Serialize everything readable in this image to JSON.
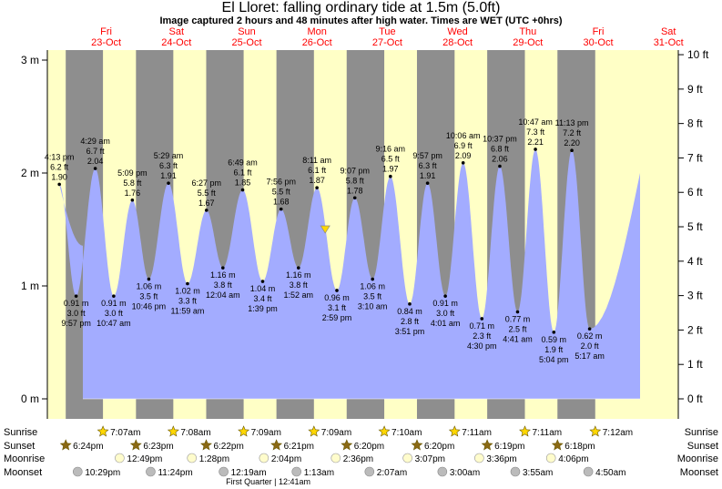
{
  "header": {
    "title": "El Lloret: falling  ordinary tide at 1.5m (5.0ft)",
    "subtitle": "Image captured 2 hours and 48 minutes after high water. Times are WET (UTC +0hrs)"
  },
  "chart_data": {
    "type": "area",
    "title": "El Lloret: falling  ordinary tide at 1.5m (5.0ft)",
    "subtitle": "Image captured 2 hours and 48 minutes after high water. Times are WET (UTC +0hrs)",
    "y_left_unit": "m",
    "y_right_unit": "ft",
    "ylim": [
      0,
      3.1
    ],
    "y_left_ticks": [
      "0 m",
      "1 m",
      "2 m",
      "3 m"
    ],
    "y_right_ticks": [
      "0 ft",
      "1 ft",
      "2 ft",
      "3 ft",
      "4 ft",
      "5 ft",
      "6 ft",
      "7 ft",
      "8 ft",
      "9 ft",
      "10 ft"
    ],
    "days": [
      {
        "dow": "Fri",
        "date": "23-Oct"
      },
      {
        "dow": "Sat",
        "date": "24-Oct"
      },
      {
        "dow": "Sun",
        "date": "25-Oct"
      },
      {
        "dow": "Mon",
        "date": "26-Oct"
      },
      {
        "dow": "Tue",
        "date": "27-Oct"
      },
      {
        "dow": "Wed",
        "date": "28-Oct"
      },
      {
        "dow": "Thu",
        "date": "29-Oct"
      },
      {
        "dow": "Fri",
        "date": "30-Oct"
      },
      {
        "dow": "Sat",
        "date": "31-Oct"
      }
    ],
    "tides": [
      {
        "type": "high",
        "day": 0,
        "time": "4:13 pm",
        "m": 1.9,
        "ft": "6.2 ft",
        "m_label": "1.90"
      },
      {
        "type": "low",
        "day": 0,
        "time": "9:57 pm",
        "m": 0.91,
        "ft": "3.0 ft",
        "m_label": "0.91 m"
      },
      {
        "type": "high",
        "day": 1,
        "time": "4:29 am",
        "m": 2.04,
        "ft": "6.7 ft",
        "m_label": "2.04"
      },
      {
        "type": "low",
        "day": 1,
        "time": "10:47 am",
        "m": 0.91,
        "ft": "3.0 ft",
        "m_label": "0.91 m"
      },
      {
        "type": "high",
        "day": 1,
        "time": "5:09 pm",
        "m": 1.76,
        "ft": "5.8 ft",
        "m_label": "1.76"
      },
      {
        "type": "low",
        "day": 1,
        "time": "10:46 pm",
        "m": 1.06,
        "ft": "3.5 ft",
        "m_label": "1.06 m"
      },
      {
        "type": "high",
        "day": 2,
        "time": "5:29 am",
        "m": 1.91,
        "ft": "6.3 ft",
        "m_label": "1.91"
      },
      {
        "type": "low",
        "day": 2,
        "time": "11:59 am",
        "m": 1.02,
        "ft": "3.3 ft",
        "m_label": "1.02 m"
      },
      {
        "type": "high",
        "day": 2,
        "time": "6:27 pm",
        "m": 1.67,
        "ft": "5.5 ft",
        "m_label": "1.67"
      },
      {
        "type": "low",
        "day": 3,
        "time": "12:04 am",
        "m": 1.16,
        "ft": "3.8 ft",
        "m_label": "1.16 m"
      },
      {
        "type": "high",
        "day": 3,
        "time": "6:49 am",
        "m": 1.85,
        "ft": "6.1 ft",
        "m_label": "1.85"
      },
      {
        "type": "low",
        "day": 3,
        "time": "1:39 pm",
        "m": 1.04,
        "ft": "3.4 ft",
        "m_label": "1.04 m"
      },
      {
        "type": "high",
        "day": 3,
        "time": "7:56 pm",
        "m": 1.68,
        "ft": "5.5 ft",
        "m_label": "1.68"
      },
      {
        "type": "low",
        "day": 4,
        "time": "1:52 am",
        "m": 1.16,
        "ft": "3.8 ft",
        "m_label": "1.16 m"
      },
      {
        "type": "high",
        "day": 4,
        "time": "8:11 am",
        "m": 1.87,
        "ft": "6.1 ft",
        "m_label": "1.87"
      },
      {
        "type": "low",
        "day": 4,
        "time": "2:59 pm",
        "m": 0.96,
        "ft": "3.1 ft",
        "m_label": "0.96 m"
      },
      {
        "type": "high",
        "day": 4,
        "time": "9:07 pm",
        "m": 1.78,
        "ft": "5.8 ft",
        "m_label": "1.78"
      },
      {
        "type": "low",
        "day": 5,
        "time": "3:10 am",
        "m": 1.06,
        "ft": "3.5 ft",
        "m_label": "1.06 m"
      },
      {
        "type": "high",
        "day": 5,
        "time": "9:16 am",
        "m": 1.97,
        "ft": "6.5 ft",
        "m_label": "1.97"
      },
      {
        "type": "low",
        "day": 5,
        "time": "3:51 pm",
        "m": 0.84,
        "ft": "2.8 ft",
        "m_label": "0.84 m"
      },
      {
        "type": "high",
        "day": 5,
        "time": "9:57 pm",
        "m": 1.91,
        "ft": "6.3 ft",
        "m_label": "1.91"
      },
      {
        "type": "low",
        "day": 6,
        "time": "4:01 am",
        "m": 0.91,
        "ft": "3.0 ft",
        "m_label": "0.91 m"
      },
      {
        "type": "high",
        "day": 6,
        "time": "10:06 am",
        "m": 2.09,
        "ft": "6.9 ft",
        "m_label": "2.09"
      },
      {
        "type": "low",
        "day": 6,
        "time": "4:30 pm",
        "m": 0.71,
        "ft": "2.3 ft",
        "m_label": "0.71 m"
      },
      {
        "type": "high",
        "day": 6,
        "time": "10:37 pm",
        "m": 2.06,
        "ft": "6.8 ft",
        "m_label": "2.06"
      },
      {
        "type": "low",
        "day": 7,
        "time": "4:41 am",
        "m": 0.77,
        "ft": "2.5 ft",
        "m_label": "0.77 m"
      },
      {
        "type": "high",
        "day": 7,
        "time": "10:47 am",
        "m": 2.21,
        "ft": "7.3 ft",
        "m_label": "2.21"
      },
      {
        "type": "low",
        "day": 7,
        "time": "5:04 pm",
        "m": 0.59,
        "ft": "1.9 ft",
        "m_label": "0.59 m"
      },
      {
        "type": "high",
        "day": 7,
        "time": "11:13 pm",
        "m": 2.2,
        "ft": "7.2 ft",
        "m_label": "2.20"
      },
      {
        "type": "low",
        "day": 8,
        "time": "5:17 am",
        "m": 0.62,
        "ft": "2.0 ft",
        "m_label": "0.62 m"
      }
    ],
    "current_marker": {
      "day": 4,
      "time": "11:00 am",
      "m": 1.5
    },
    "sun": {
      "sunrise": [
        {
          "day": 1,
          "time": "7:07am"
        },
        {
          "day": 2,
          "time": "7:08am"
        },
        {
          "day": 3,
          "time": "7:09am"
        },
        {
          "day": 4,
          "time": "7:09am"
        },
        {
          "day": 5,
          "time": "7:10am"
        },
        {
          "day": 6,
          "time": "7:11am"
        },
        {
          "day": 7,
          "time": "7:11am"
        },
        {
          "day": 8,
          "time": "7:12am"
        }
      ],
      "sunset": [
        {
          "day": 0,
          "time": "6:24pm"
        },
        {
          "day": 1,
          "time": "6:23pm"
        },
        {
          "day": 2,
          "time": "6:22pm"
        },
        {
          "day": 3,
          "time": "6:21pm"
        },
        {
          "day": 4,
          "time": "6:20pm"
        },
        {
          "day": 5,
          "time": "6:20pm"
        },
        {
          "day": 6,
          "time": "6:19pm"
        },
        {
          "day": 7,
          "time": "6:18pm"
        }
      ]
    },
    "moon": {
      "moonrise": [
        {
          "day": 1,
          "time": "12:49pm"
        },
        {
          "day": 2,
          "time": "1:28pm"
        },
        {
          "day": 3,
          "time": "2:04pm"
        },
        {
          "day": 4,
          "time": "2:36pm"
        },
        {
          "day": 5,
          "time": "3:07pm"
        },
        {
          "day": 6,
          "time": "3:36pm"
        },
        {
          "day": 7,
          "time": "4:06pm"
        }
      ],
      "moonset": [
        {
          "day": 0,
          "time": "10:29pm"
        },
        {
          "day": 1,
          "time": "11:24pm"
        },
        {
          "day": 3,
          "time": "12:19am"
        },
        {
          "day": 4,
          "time": "1:13am"
        },
        {
          "day": 5,
          "time": "2:07am"
        },
        {
          "day": 6,
          "time": "3:00am"
        },
        {
          "day": 7,
          "time": "3:55am"
        },
        {
          "day": 8,
          "time": "4:50am"
        }
      ]
    },
    "row_labels": {
      "sunrise": "Sunrise",
      "sunset": "Sunset",
      "moonrise": "Moonrise",
      "moonset": "Moonset"
    },
    "moon_phase": {
      "day": 3,
      "text": "First Quarter | 12:41am"
    },
    "colors": {
      "water": "#a3acff",
      "day": "#ffffc6",
      "night": "#8e8e8e",
      "day_label": "#ff0000",
      "sun": "#ffd700",
      "sunset": "#8b6914",
      "moon_rise": "#fffccc",
      "moon_set": "#bbbbbb",
      "marker": "#ffd700"
    }
  }
}
